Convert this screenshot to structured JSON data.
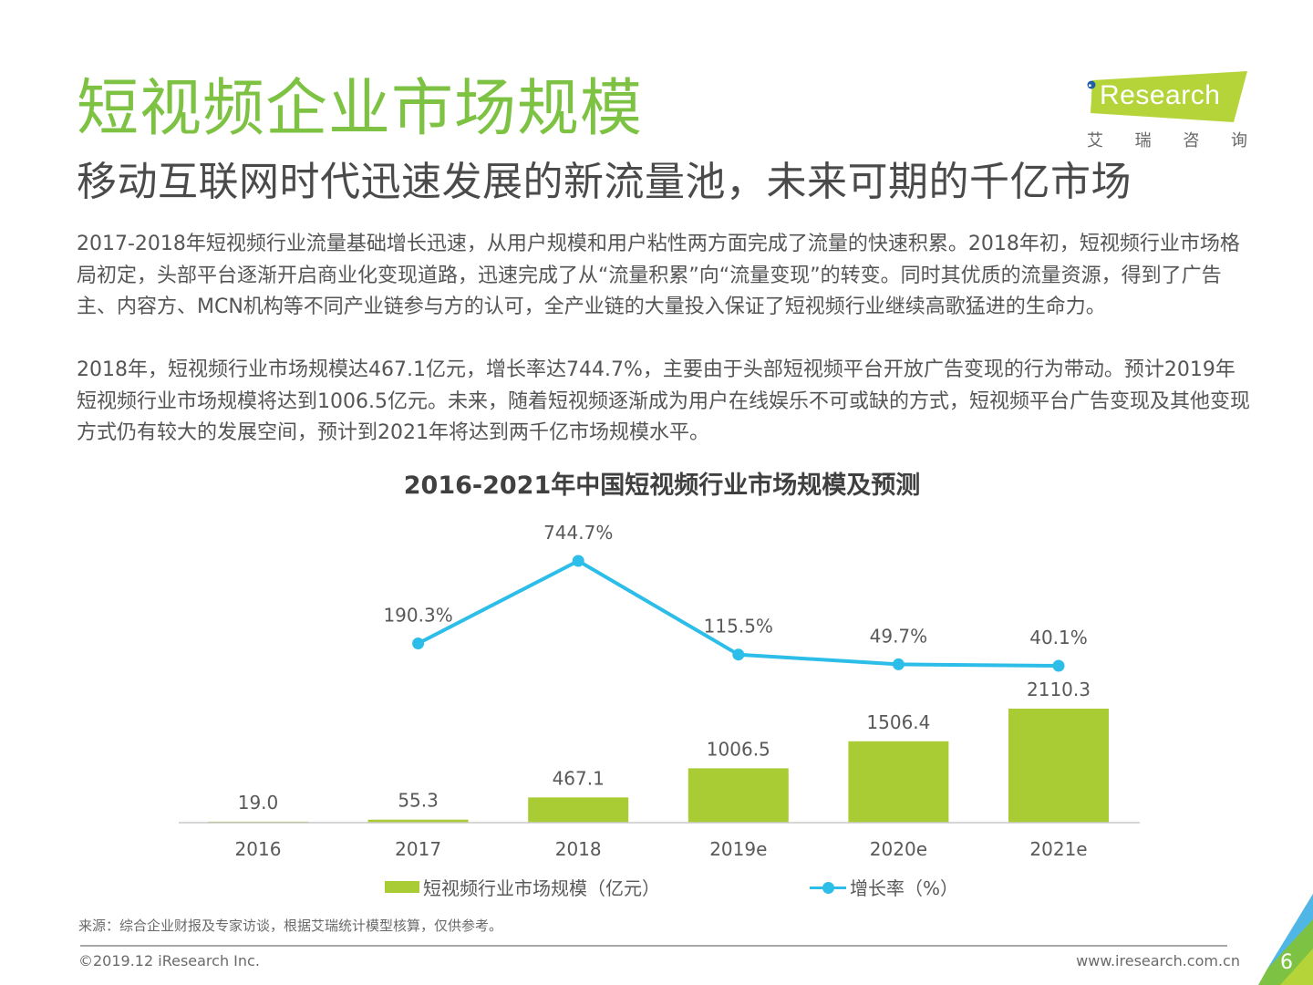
{
  "header": {
    "title": "短视频企业市场规模",
    "subtitle": "移动互联网时代迅速发展的新流量池，未来可期的千亿市场"
  },
  "logo": {
    "i_letter": "i",
    "word": "Research",
    "chinese": [
      "艾",
      "瑞",
      "咨",
      "询"
    ],
    "brand_color": "#b5d43a",
    "dot_color": "#1f5fa8"
  },
  "body": {
    "paragraphs": [
      "2017-2018年短视频行业流量基础增长迅速，从用户规模和用户粘性两方面完成了流量的快速积累。2018年初，短视频行业市场格局初定，头部平台逐渐开启商业化变现道路，迅速完成了从“流量积累”向“流量变现”的转变。同时其优质的流量资源，得到了广告主、内容方、MCN机构等不同产业链参与方的认可，全产业链的大量投入保证了短视频行业继续高歌猛进的生命力。",
      "2018年，短视频行业市场规模达467.1亿元，增长率达744.7%，主要由于头部短视频平台开放广告变现的行为带动。预计2019年短视频行业市场规模将达到1006.5亿元。未来，随着短视频逐渐成为用户在线娱乐不可或缺的方式，短视频平台广告变现及其他变现方式仍有较大的发展空间，预计到2021年将达到两千亿市场规模水平。"
    ]
  },
  "chart_data": {
    "type": "bar",
    "title": "2016-2021年中国短视频行业市场规模及预测",
    "categories": [
      "2016",
      "2017",
      "2018",
      "2019e",
      "2020e",
      "2021e"
    ],
    "series": [
      {
        "name": "短视频行业市场规模（亿元）",
        "type": "bar",
        "axis": "primary",
        "color": "#a9cc35",
        "values": [
          19.0,
          55.3,
          467.1,
          1006.5,
          1506.4,
          2110.3
        ],
        "labels": [
          "19.0",
          "55.3",
          "467.1",
          "1006.5",
          "1506.4",
          "2110.3"
        ]
      },
      {
        "name": "增长率（%）",
        "type": "line",
        "axis": "secondary",
        "color": "#2cbde8",
        "values": [
          null,
          190.3,
          744.7,
          115.5,
          49.7,
          40.1
        ],
        "labels": [
          "",
          "190.3%",
          "744.7%",
          "115.5%",
          "49.7%",
          "40.1%"
        ]
      }
    ],
    "xlabel": "",
    "ylabel": "",
    "ylim": [
      0,
      2110.3
    ],
    "y2lim": [
      -4500,
      744.7
    ],
    "grid": false,
    "legend": "bottom"
  },
  "legend": {
    "bar_label": "短视频行业市场规模（亿元）",
    "line_label": "增长率（%）"
  },
  "footer": {
    "source": "来源：综合企业财报及专家访谈，根据艾瑞统计模型核算，仅供参考。",
    "copyright": "©2019.12 iResearch Inc.",
    "website": "www.iresearch.com.cn",
    "page_number": "6"
  }
}
